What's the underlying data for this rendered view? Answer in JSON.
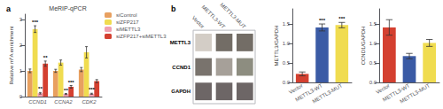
{
  "chart_data": [
    {
      "type": "bar",
      "panel_label": "a",
      "title": "MeRIP-qPCR",
      "ylabel": "Relative m⁶A enrichment",
      "categories": [
        "CCND1",
        "CCNA2",
        "CDK2"
      ],
      "series": [
        {
          "name": "siControl",
          "color": "#E8A060",
          "values": [
            1.0,
            1.0,
            1.05
          ],
          "errors": [
            0.07,
            0.06,
            0.08
          ]
        },
        {
          "name": "siZFP217",
          "color": "#F0DC50",
          "values": [
            2.62,
            1.32,
            1.72
          ],
          "errors": [
            0.13,
            0.1,
            0.22
          ],
          "annotations": [
            "***",
            null,
            null
          ]
        },
        {
          "name": "siMETTL3",
          "color": "#F0A0B0",
          "values": [
            0.13,
            0.1,
            0.11
          ],
          "errors": [
            0.03,
            0.02,
            0.02
          ],
          "annotations": [
            "**",
            "**",
            "***"
          ]
        },
        {
          "name": "siZFP217+siMETTL3",
          "color": "#D44030",
          "values": [
            1.28,
            0.38,
            0.6
          ],
          "errors": [
            0.1,
            0.05,
            0.06
          ],
          "annotations": [
            "**",
            "***",
            null
          ]
        }
      ],
      "ylim": [
        0,
        3.2
      ],
      "yticks": [
        0,
        1,
        2,
        3
      ],
      "grid": false,
      "legend": "right"
    },
    {
      "type": "blot",
      "panel_label": "b",
      "rows": [
        "METTL3",
        "CCND1",
        "GAPDH"
      ],
      "categories": [
        "Vector",
        "METTL3-WT",
        "METTL3-MUT"
      ],
      "colors": [
        [
          "#C8C0B8",
          "#504840",
          "#504840"
        ],
        [
          "#585048",
          "#908880",
          "#707060"
        ],
        [
          "#484040",
          "#484040",
          "#484040"
        ]
      ]
    },
    {
      "type": "bar",
      "ylabel": "METTL3/GAPDH",
      "categories": [
        "Vector",
        "METTL3-WT",
        "METTL3-MUT"
      ],
      "values": [
        0.22,
        1.42,
        1.48
      ],
      "errors": [
        0.05,
        0.09,
        0.07
      ],
      "colors": [
        "#D44030",
        "#3B5BA5",
        "#F0DC50"
      ],
      "annotations": [
        null,
        "***",
        "***"
      ],
      "ylim": [
        0,
        1.9
      ],
      "yticks": [
        {
          "value": 0,
          "label": "0.0"
        },
        0.5,
        {
          "value": 1,
          "label": "1.0"
        },
        1.5
      ],
      "grid": false
    },
    {
      "type": "bar",
      "ylabel": "CCND1/GAPDH",
      "categories": [
        "Vector",
        "METTL3-WT",
        "METTL3-MUT"
      ],
      "values": [
        1.42,
        0.68,
        1.02
      ],
      "errors": [
        0.2,
        0.07,
        0.09
      ],
      "colors": [
        "#D44030",
        "#3B5BA5",
        "#F0DC50"
      ],
      "ylim": [
        0,
        1.9
      ],
      "yticks": [
        {
          "value": 0,
          "label": "0.0"
        },
        0.5,
        {
          "value": 1,
          "label": "1.0"
        },
        1.5
      ],
      "grid": false
    }
  ]
}
